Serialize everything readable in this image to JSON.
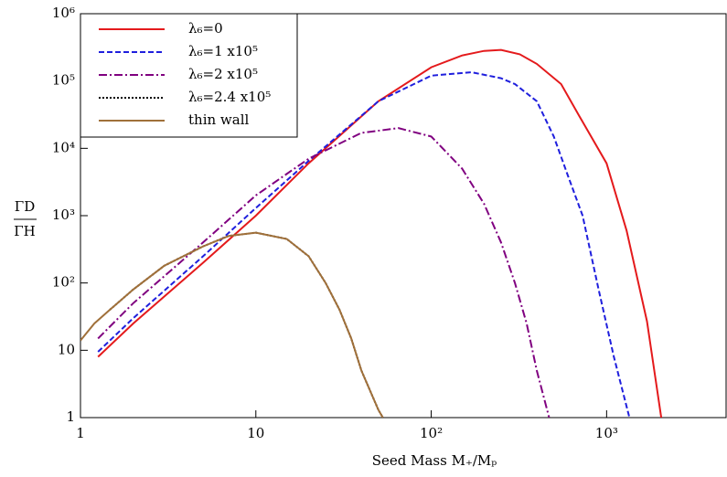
{
  "chart_data": {
    "type": "line",
    "x_label": "Seed Mass M₊/Mₚ",
    "y_label_numerator": "ΓD",
    "y_label_denominator": "ΓH",
    "xscale": "log",
    "yscale": "log",
    "xlim": [
      1,
      4800
    ],
    "ylim": [
      1,
      1000000
    ],
    "xticks": [
      1,
      10,
      {
        "value": 100,
        "label": "10²"
      },
      {
        "value": 1000,
        "label": "10³"
      }
    ],
    "yticks": [
      1,
      10,
      {
        "value": 100,
        "label": "10²"
      },
      {
        "value": 1000,
        "label": "10³"
      },
      {
        "value": 10000,
        "label": "10⁴"
      },
      {
        "value": 100000,
        "label": "10⁵"
      },
      {
        "value": 1000000,
        "label": "10⁶"
      }
    ],
    "legend": "upper left",
    "series": [
      {
        "name": "λ₆=0",
        "color": "#e41a1c",
        "linestyle": "solid",
        "x": [
          1.26,
          2,
          5,
          10,
          20,
          50,
          100,
          150,
          200,
          250,
          320,
          400,
          550,
          700,
          1000,
          1300,
          1700,
          2050
        ],
        "values": [
          8,
          25,
          200,
          1000,
          6000,
          50000,
          160000,
          240000,
          280000,
          290000,
          250000,
          180000,
          90000,
          30000,
          6000,
          600,
          27,
          1
        ]
      },
      {
        "name": "λ₆=1 x10⁵",
        "color": "#1f1fdd",
        "linestyle": "dashed",
        "x": [
          1.26,
          2,
          5,
          10,
          20,
          50,
          100,
          170,
          250,
          300,
          400,
          500,
          600,
          730,
          900,
          1100,
          1350
        ],
        "values": [
          9.5,
          30,
          250,
          1300,
          6500,
          50000,
          120000,
          135000,
          110000,
          90000,
          50000,
          15000,
          4000,
          1000,
          80,
          8,
          1
        ]
      },
      {
        "name": "λ₆=2 x10⁵",
        "color": "#800080",
        "linestyle": "dashdot",
        "x": [
          1.26,
          2,
          5,
          10,
          20,
          40,
          65,
          100,
          150,
          200,
          250,
          300,
          350,
          400,
          470
        ],
        "values": [
          15,
          50,
          400,
          2000,
          7000,
          17000,
          20000,
          15000,
          5000,
          1500,
          400,
          100,
          25,
          5,
          1
        ]
      },
      {
        "name": "λ₆=2.4 x10⁵",
        "color": "#000000",
        "linestyle": "dotted",
        "x": [
          1.47,
          2,
          3,
          5,
          7,
          10,
          15,
          20,
          25,
          30,
          35,
          40,
          50,
          53
        ],
        "values": [
          40,
          80,
          180,
          350,
          500,
          560,
          450,
          250,
          100,
          40,
          15,
          5,
          1.3,
          1
        ]
      },
      {
        "name": "thin wall",
        "color": "#a0703a",
        "linestyle": "solid",
        "x": [
          1,
          1.2,
          1.47,
          2,
          3,
          5,
          7,
          10,
          15,
          20,
          25,
          30,
          35,
          40,
          50,
          53
        ],
        "values": [
          14,
          25,
          40,
          80,
          180,
          350,
          500,
          560,
          450,
          250,
          100,
          40,
          15,
          5,
          1.3,
          1
        ]
      }
    ]
  }
}
